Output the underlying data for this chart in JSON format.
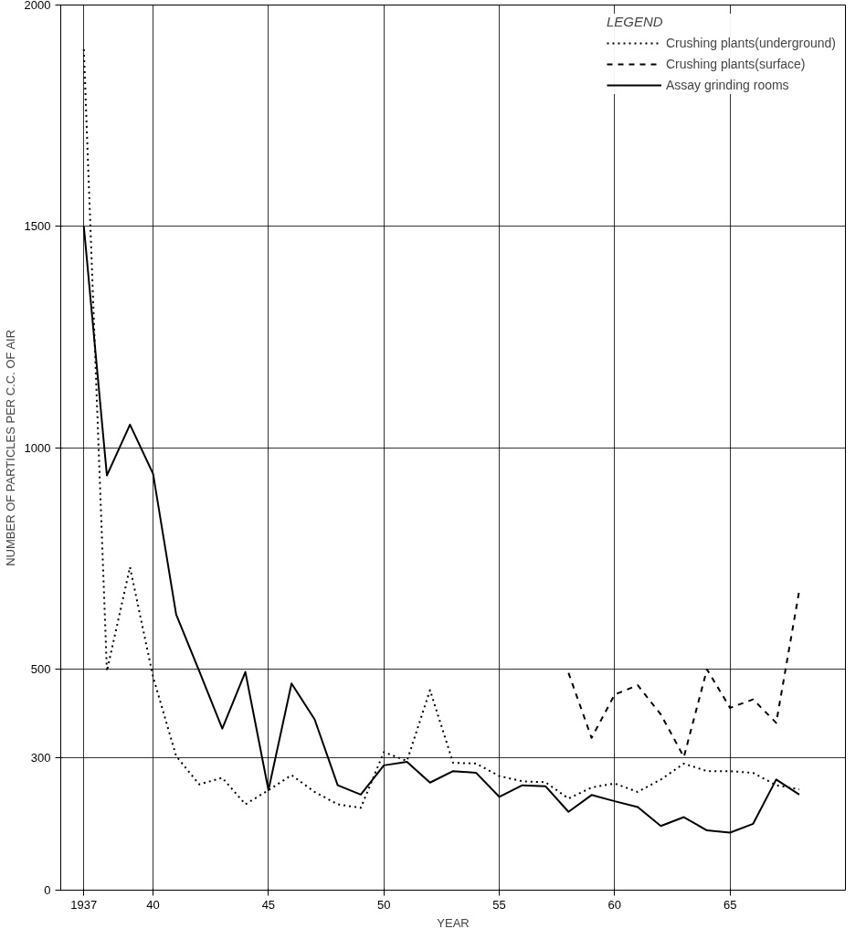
{
  "chart_data": {
    "type": "line",
    "xlabel": "YEAR",
    "ylabel": "NUMBER OF PARTICLES PER C.C. OF AIR",
    "legend_title": "LEGEND",
    "xlim": [
      1936,
      1970
    ],
    "ylim": [
      0,
      2000
    ],
    "xticks": [
      {
        "value": 1937,
        "label": "1937"
      },
      {
        "value": 1940,
        "label": "40"
      },
      {
        "value": 1945,
        "label": "45"
      },
      {
        "value": 1950,
        "label": "50"
      },
      {
        "value": 1955,
        "label": "55"
      },
      {
        "value": 1960,
        "label": "60"
      },
      {
        "value": 1965,
        "label": "65"
      }
    ],
    "yticks": [
      0,
      300,
      500,
      1000,
      1500,
      2000
    ],
    "grid": true,
    "legend": "top right",
    "series": [
      {
        "name": "Crushing plants(underground)",
        "color": "#000000",
        "line_style": "dotted",
        "x": [
          1937,
          1938,
          1939,
          1940,
          1941,
          1942,
          1943,
          1944,
          1945,
          1946,
          1947,
          1948,
          1949,
          1950,
          1951,
          1952,
          1953,
          1954,
          1955,
          1956,
          1957,
          1958,
          1959,
          1960,
          1961,
          1962,
          1963,
          1964,
          1965,
          1966,
          1967,
          1968
        ],
        "values": [
          1900,
          495,
          730,
          482,
          303,
          239,
          254,
          194,
          226,
          260,
          222,
          194,
          186,
          312,
          292,
          452,
          288,
          286,
          258,
          246,
          244,
          207,
          232,
          241,
          222,
          250,
          286,
          269,
          269,
          265,
          237,
          228
        ]
      },
      {
        "name": "Crushing plants(surface)",
        "color": "#000000",
        "line_style": "dashed",
        "x": [
          1958,
          1959,
          1960,
          1961,
          1962,
          1963,
          1964,
          1965,
          1966,
          1967,
          1968
        ],
        "values": [
          491,
          344,
          442,
          463,
          397,
          301,
          499,
          412,
          431,
          378,
          677
        ]
      },
      {
        "name": "Assay grinding rooms",
        "color": "#000000",
        "line_style": "solid",
        "x": [
          1937,
          1938,
          1939,
          1940,
          1941,
          1942,
          1943,
          1944,
          1945,
          1946,
          1947,
          1948,
          1949,
          1950,
          1951,
          1952,
          1953,
          1954,
          1955,
          1956,
          1957,
          1958,
          1959,
          1960,
          1961,
          1962,
          1963,
          1964,
          1965,
          1966,
          1967,
          1968
        ],
        "values": [
          1500,
          937,
          1052,
          941,
          623,
          495,
          365,
          493,
          226,
          467,
          386,
          237,
          216,
          282,
          290,
          243,
          269,
          265,
          211,
          237,
          235,
          177,
          215,
          201,
          188,
          145,
          165,
          135,
          130,
          150,
          250,
          216
        ]
      }
    ]
  }
}
